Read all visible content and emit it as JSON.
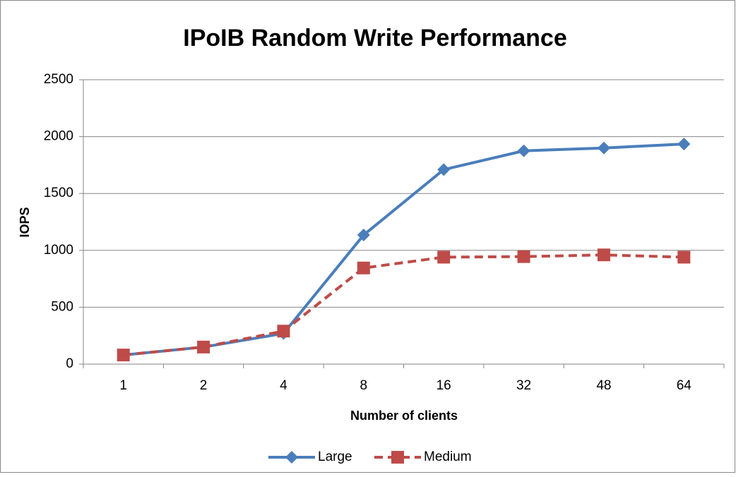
{
  "chart_data": {
    "type": "line",
    "title": "IPoIB Random Write Performance",
    "x_label": "Number of clients",
    "y_label": "IOPS",
    "categories": [
      "1",
      "2",
      "4",
      "8",
      "16",
      "32",
      "48",
      "64"
    ],
    "series": [
      {
        "name": "Large",
        "color": "#4a7ebb",
        "marker": "diamond",
        "dash": false,
        "values": [
          80,
          150,
          270,
          1135,
          1710,
          1875,
          1900,
          1935
        ]
      },
      {
        "name": "Medium",
        "color": "#be4b48",
        "marker": "square",
        "dash": true,
        "values": [
          80,
          150,
          290,
          845,
          940,
          945,
          960,
          940
        ]
      }
    ],
    "ylim": [
      0,
      2500
    ],
    "yticks": [
      0,
      500,
      1000,
      1500,
      2000,
      2500
    ],
    "grid": true,
    "legend": "bottom"
  }
}
